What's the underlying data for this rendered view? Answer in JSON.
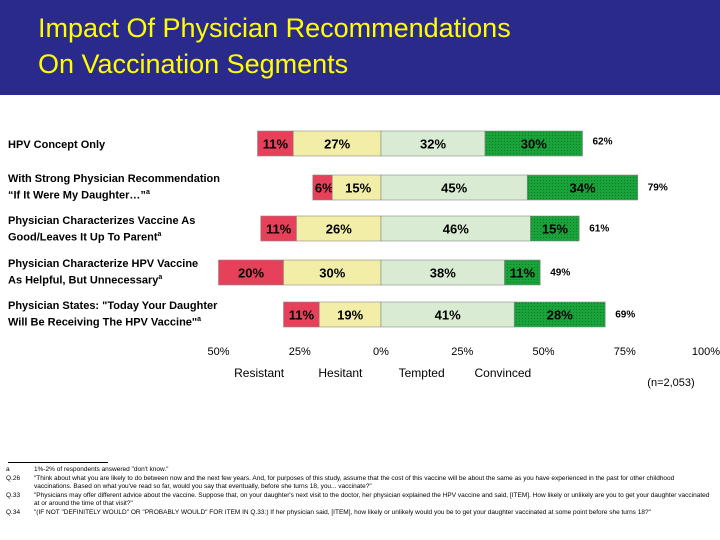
{
  "title": {
    "line1": "Impact Of Physician Recommendations",
    "line2": "On Vaccination Segments"
  },
  "colors": {
    "title_bg": "#2a2a8c",
    "title_text": "#ffff00",
    "resistant": "#e7405a",
    "hesitant": "#f2eea8",
    "tempted": "#d9ecd3",
    "convinced": "#1aa33a"
  },
  "rows": [
    {
      "label_line1": "HPV Concept Only",
      "label_line2": "",
      "sup": "",
      "resistant": 11,
      "hesitant": 27,
      "tempted": 32,
      "convinced": 30,
      "total": "62%"
    },
    {
      "label_line1": "With Strong Physician Recommendation",
      "label_line2": "“If It Were My Daughter…”",
      "sup": "a",
      "resistant": 6,
      "hesitant": 15,
      "tempted": 45,
      "convinced": 34,
      "total": "79%"
    },
    {
      "label_line1": "Physician Characterizes Vaccine As",
      "label_line2": "Good/Leaves It Up To Parent",
      "sup": "a",
      "resistant": 11,
      "hesitant": 26,
      "tempted": 46,
      "convinced": 15,
      "total": "61%"
    },
    {
      "label_line1": "Physician Characterize HPV Vaccine",
      "label_line2": "As Helpful, But Unnecessary",
      "sup": "a",
      "resistant": 20,
      "hesitant": 30,
      "tempted": 38,
      "convinced": 11,
      "total": "49%"
    },
    {
      "label_line1": "Physician States: \"Today Your Daughter",
      "label_line2": "Will Be Receiving The HPV Vaccine\"",
      "sup": "a",
      "resistant": 11,
      "hesitant": 19,
      "tempted": 41,
      "convinced": 28,
      "total": "69%"
    }
  ],
  "chart_data": {
    "type": "bar",
    "orientation": "horizontal-diverging-stacked",
    "title": "Impact Of Physician Recommendations On Vaccination Segments",
    "categories": [
      "HPV Concept Only",
      "With Strong Physician Recommendation “If It Were My Daughter…”",
      "Physician Characterizes Vaccine As Good/Leaves It Up To Parent",
      "Physician Characterize HPV Vaccine As Helpful, But Unnecessary",
      "Physician States: \"Today Your Daughter Will Be Receiving The HPV Vaccine\""
    ],
    "series": [
      {
        "name": "Resistant",
        "values": [
          11,
          6,
          11,
          20,
          11
        ]
      },
      {
        "name": "Hesitant",
        "values": [
          27,
          15,
          26,
          30,
          19
        ]
      },
      {
        "name": "Tempted",
        "values": [
          32,
          45,
          46,
          38,
          41
        ]
      },
      {
        "name": "Convinced",
        "values": [
          30,
          34,
          15,
          11,
          28
        ]
      }
    ],
    "totals_positive": [
      "62%",
      "79%",
      "61%",
      "49%",
      "69%"
    ],
    "xlim": [
      -50,
      100
    ],
    "ticks": [
      {
        "value": -50,
        "label": "50%"
      },
      {
        "value": -25,
        "label": "25%"
      },
      {
        "value": 0,
        "label": "0%"
      },
      {
        "value": 25,
        "label": "25%"
      },
      {
        "value": 50,
        "label": "50%"
      },
      {
        "value": 75,
        "label": "75%"
      },
      {
        "value": 100,
        "label": "100%"
      }
    ],
    "segment_labels": [
      {
        "label": "Resistant",
        "value": -37.5
      },
      {
        "label": "Hesitant",
        "value": -12.5
      },
      {
        "label": "Tempted",
        "value": 12.5
      },
      {
        "label": "Convinced",
        "value": 37.5
      }
    ],
    "sample_size": "(n=2,053)"
  },
  "footnotes": [
    {
      "key": "a",
      "text": "1%-2% of respondents answered \"don't know.\""
    },
    {
      "key": "Q.26",
      "text": "\"Think about what you are likely to do between now and the next few years. And, for purposes of this study, assume that the cost of this vaccine will be about the same as you have experienced in the past for other childhood vaccinations. Based on what you've read so far, would you say that eventually, before she turns 18, you... vaccinate?\""
    },
    {
      "key": "Q.33",
      "text": "\"Physicians may offer different advice about the vaccine. Suppose that, on your daughter's next visit to the doctor, her physician explained the HPV vaccine and said, [ITEM]. How likely or unlikely are you to get your daughter vaccinated at or around the time of that visit?\""
    },
    {
      "key": "Q.34",
      "text": "\"(IF NOT \"DEFINITELY WOULD\" OR \"PROBABLY WOULD\" FOR ITEM IN Q.33:) If her physician said, [ITEM], how likely or unlikely would you be to get your daughter vaccinated at some point before she turns 18?\""
    }
  ]
}
